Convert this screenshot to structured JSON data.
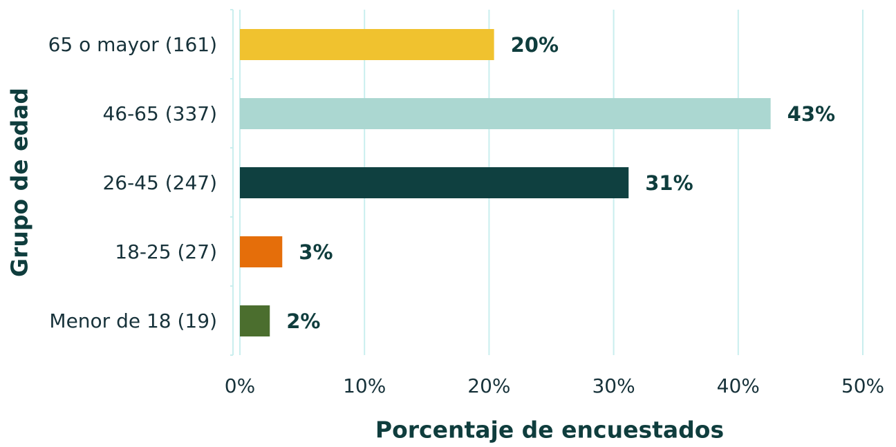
{
  "chart_data": {
    "type": "barh",
    "xlabel": "Porcentaje de encuestados",
    "ylabel": "Grupo de edad",
    "categories": [
      "65 o mayor (161)",
      "46-65 (337)",
      "26-45 (247)",
      "18-25 (27)",
      "Menor de 18 (19)"
    ],
    "values": [
      20.4,
      42.6,
      31.2,
      3.4,
      2.4
    ],
    "value_labels": [
      "20%",
      "43%",
      "31%",
      "3%",
      "2%"
    ],
    "colors": [
      "#f0c22f",
      "#abd7d1",
      "#0f4040",
      "#e56e0a",
      "#4b6e2e"
    ],
    "xlim": [
      0,
      50
    ],
    "xticks": [
      {
        "value": 0,
        "label": "0%"
      },
      {
        "value": 10,
        "label": "10%"
      },
      {
        "value": 20,
        "label": "20%"
      },
      {
        "value": 30,
        "label": "30%"
      },
      {
        "value": 40,
        "label": "40%"
      },
      {
        "value": 50,
        "label": "50%"
      }
    ],
    "grid": true
  }
}
